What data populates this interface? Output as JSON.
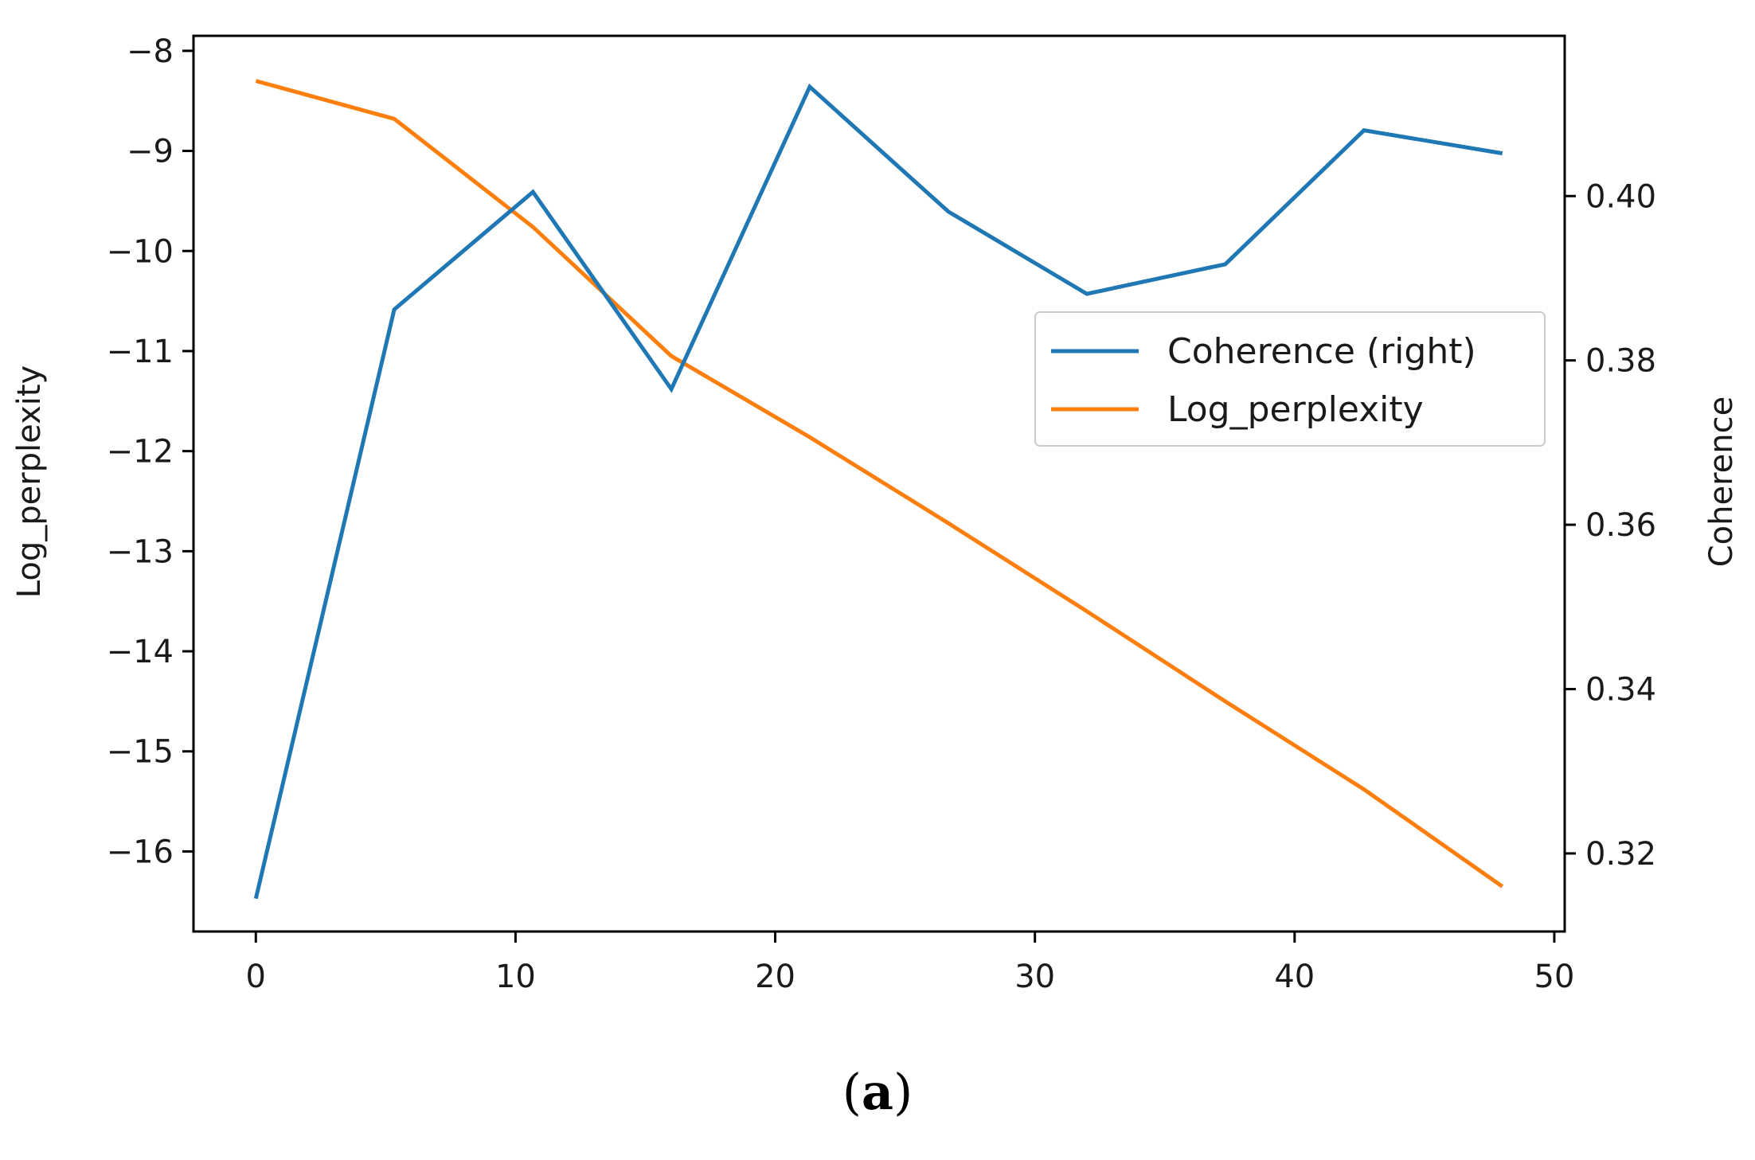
{
  "chart_data": {
    "type": "line",
    "x": [
      0,
      5.33,
      10.67,
      16,
      21.33,
      26.67,
      32,
      37.33,
      42.67,
      48
    ],
    "series": [
      {
        "name": "Log_perplexity",
        "axis": "left",
        "color": "#ff7f0e",
        "values": [
          -8.3,
          -8.68,
          -9.76,
          -11.05,
          -11.86,
          -12.72,
          -13.6,
          -14.5,
          -15.38,
          -16.35
        ]
      },
      {
        "name": "Coherence (right)",
        "axis": "right",
        "color": "#1f77b4",
        "values": [
          0.3145,
          0.3862,
          0.4005,
          0.3765,
          0.4133,
          0.3981,
          0.3881,
          0.3917,
          0.408,
          0.4052
        ]
      }
    ],
    "xlim": [
      -2.4,
      50.4
    ],
    "ylim_left": [
      -16.8,
      -7.85
    ],
    "ylim_right": [
      0.3105,
      0.4195
    ],
    "xticks": [
      0,
      10,
      20,
      30,
      40,
      50
    ],
    "yticks_left": [
      -8,
      -9,
      -10,
      -11,
      -12,
      -13,
      -14,
      -15,
      -16
    ],
    "yticks_right": [
      0.32,
      0.34,
      0.36,
      0.38,
      0.4
    ],
    "xlabel": "",
    "ylabel_left": "Log_perplexity",
    "ylabel_right": "Coherence",
    "legend_entries": [
      "Coherence (right)",
      "Log_perplexity"
    ],
    "legend_position": "center-right",
    "grid": false
  },
  "caption": {
    "open": "(",
    "label": "a",
    "close": ")"
  }
}
